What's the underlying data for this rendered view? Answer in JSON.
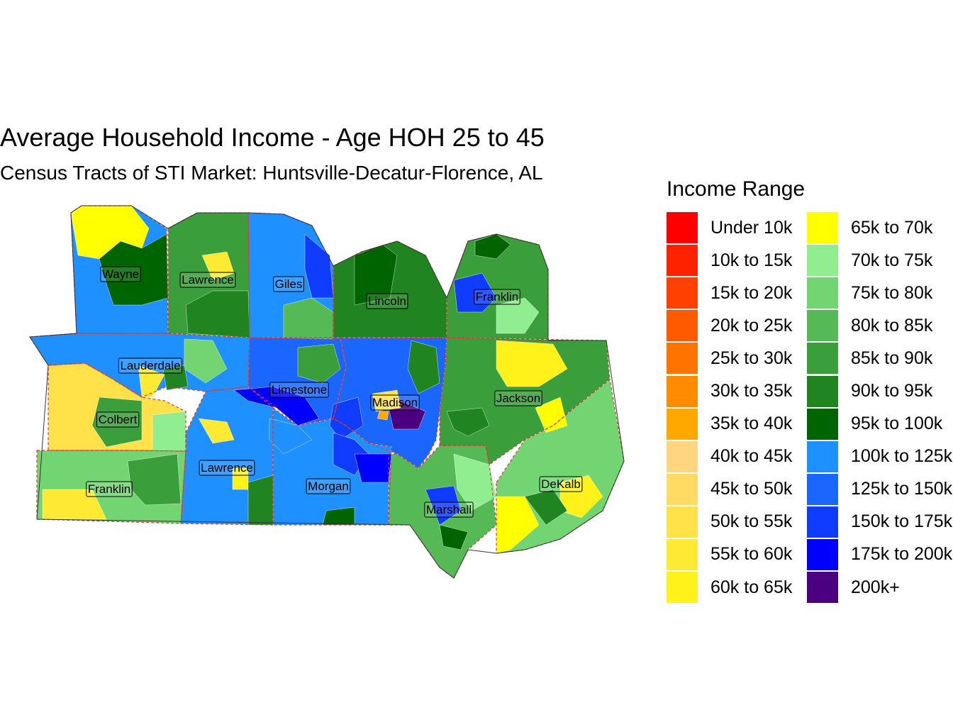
{
  "title": "Average Household Income - Age HOH 25 to 45",
  "subtitle": "Census Tracts of STI Market: Huntsville-Decatur-Florence, AL",
  "legend": {
    "title": "Income Range",
    "items": [
      {
        "label": "Under 10k",
        "color": "#ff0000"
      },
      {
        "label": "10k to 15k",
        "color": "#ff2200"
      },
      {
        "label": "15k to 20k",
        "color": "#ff4000"
      },
      {
        "label": "20k to 25k",
        "color": "#ff5a00"
      },
      {
        "label": "25k to 30k",
        "color": "#ff7300"
      },
      {
        "label": "30k to 35k",
        "color": "#ff8c00"
      },
      {
        "label": "35k to 40k",
        "color": "#ffa800"
      },
      {
        "label": "40k to 45k",
        "color": "#ffd580"
      },
      {
        "label": "45k to 50k",
        "color": "#ffdb66"
      },
      {
        "label": "50k to 55k",
        "color": "#ffe24a"
      },
      {
        "label": "55k to 60k",
        "color": "#ffea33"
      },
      {
        "label": "60k to 65k",
        "color": "#fff21a"
      },
      {
        "label": "65k to 70k",
        "color": "#ffff00"
      },
      {
        "label": "70k to 75k",
        "color": "#90ee90"
      },
      {
        "label": "75k to 80k",
        "color": "#72d572"
      },
      {
        "label": "80k to 85k",
        "color": "#55b955"
      },
      {
        "label": "85k to 90k",
        "color": "#3a9e3a"
      },
      {
        "label": "90k to 95k",
        "color": "#208420"
      },
      {
        "label": "95k to 100k",
        "color": "#006400"
      },
      {
        "label": "100k to 125k",
        "color": "#1e90ff"
      },
      {
        "label": "125k to 150k",
        "color": "#1a66ff"
      },
      {
        "label": "150k to 175k",
        "color": "#0f3cff"
      },
      {
        "label": "175k to 200k",
        "color": "#0000ff"
      },
      {
        "label": "200k+",
        "color": "#4b0082"
      }
    ]
  },
  "counties": [
    {
      "name": "Wayne",
      "category": "100k to 125k"
    },
    {
      "name": "Lawrence",
      "category": "85k to 90k"
    },
    {
      "name": "Giles",
      "category": "100k to 125k"
    },
    {
      "name": "Lincoln",
      "category": "90k to 95k"
    },
    {
      "name": "Franklin",
      "category": "85k to 90k"
    },
    {
      "name": "Lauderdale",
      "category": "100k to 125k"
    },
    {
      "name": "Colbert",
      "category": "50k to 55k"
    },
    {
      "name": "Limestone",
      "category": "125k to 150k"
    },
    {
      "name": "Madison",
      "category": "125k to 150k"
    },
    {
      "name": "Jackson",
      "category": "85k to 90k"
    },
    {
      "name": "Franklin",
      "category": "75k to 80k"
    },
    {
      "name": "Lawrence",
      "category": "100k to 125k"
    },
    {
      "name": "Morgan",
      "category": "100k to 125k"
    },
    {
      "name": "Marshall",
      "category": "80k to 85k"
    },
    {
      "name": "DeKalb",
      "category": "75k to 80k"
    }
  ],
  "tracts": [
    {
      "county": "Wayne",
      "category": "65k to 70k"
    },
    {
      "county": "Wayne",
      "category": "95k to 100k"
    },
    {
      "county": "Lawrence",
      "category": "90k to 95k"
    },
    {
      "county": "Lawrence",
      "category": "55k to 60k"
    },
    {
      "county": "Giles",
      "category": "150k to 175k"
    },
    {
      "county": "Giles",
      "category": "80k to 85k"
    },
    {
      "county": "Lincoln",
      "category": "95k to 100k"
    },
    {
      "county": "Franklin",
      "category": "150k to 175k"
    },
    {
      "county": "Franklin",
      "category": "70k to 75k"
    },
    {
      "county": "Franklin",
      "category": "95k to 100k"
    },
    {
      "county": "Lauderdale",
      "category": "75k to 80k"
    },
    {
      "county": "Lauderdale",
      "category": "90k to 95k"
    },
    {
      "county": "Lauderdale",
      "category": "55k to 60k"
    },
    {
      "county": "Colbert",
      "category": "85k to 90k"
    },
    {
      "county": "Colbert",
      "category": "70k to 75k"
    },
    {
      "county": "Limestone",
      "category": "175k to 200k"
    },
    {
      "county": "Limestone",
      "category": "85k to 90k"
    },
    {
      "county": "Limestone",
      "category": "100k to 125k"
    },
    {
      "county": "Madison",
      "category": "200k+"
    },
    {
      "county": "Madison",
      "category": "150k to 175k"
    },
    {
      "county": "Madison",
      "category": "90k to 95k"
    },
    {
      "county": "Madison",
      "category": "50k to 55k"
    },
    {
      "county": "Madison",
      "category": "35k to 40k"
    },
    {
      "county": "Jackson",
      "category": "60k to 65k"
    },
    {
      "county": "Jackson",
      "category": "90k to 95k"
    },
    {
      "county": "Jackson",
      "category": "65k to 70k"
    },
    {
      "county": "Franklin",
      "category": "55k to 60k"
    },
    {
      "county": "Franklin",
      "category": "85k to 90k"
    },
    {
      "county": "Lawrence",
      "category": "60k to 65k"
    },
    {
      "county": "Lawrence",
      "category": "55k to 60k"
    },
    {
      "county": "Lawrence",
      "category": "90k to 95k"
    },
    {
      "county": "Morgan",
      "category": "150k to 175k"
    },
    {
      "county": "Morgan",
      "category": "175k to 200k"
    },
    {
      "county": "Morgan",
      "category": "95k to 100k"
    },
    {
      "county": "Marshall",
      "category": "150k to 175k"
    },
    {
      "county": "Marshall",
      "category": "70k to 75k"
    },
    {
      "county": "Marshall",
      "category": "95k to 100k"
    },
    {
      "county": "DeKalb",
      "category": "65k to 70k"
    },
    {
      "county": "DeKalb",
      "category": "60k to 65k"
    },
    {
      "county": "DeKalb",
      "category": "90k to 95k"
    }
  ]
}
